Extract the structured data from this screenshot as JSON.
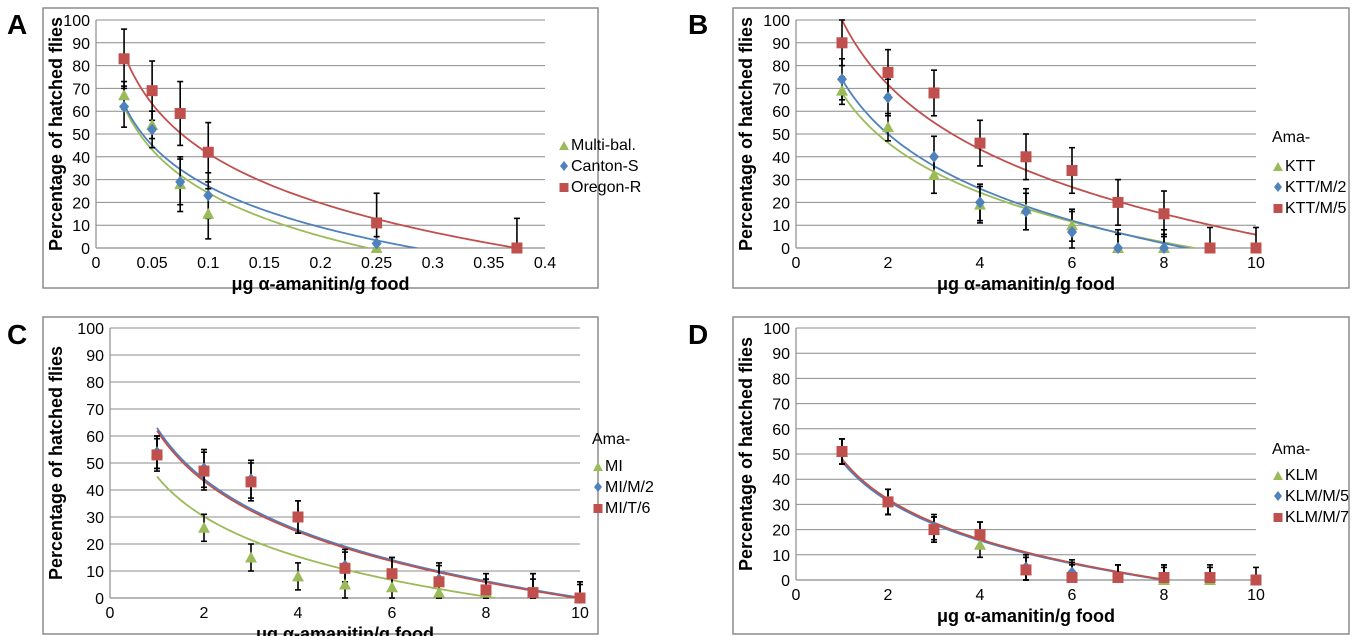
{
  "chart_data": [
    {
      "panel": "A",
      "type": "scatter",
      "ylabel": "Percentage of hatched flies",
      "xlabel": "μg α-amanitin/g food",
      "xlim": [
        0,
        0.4
      ],
      "ylim": [
        0,
        100
      ],
      "xticks": [
        "0",
        "0.05",
        "0.1",
        "0.15",
        "0.2",
        "0.25",
        "0.3",
        "0.35",
        "0.4"
      ],
      "yticks": [
        "0",
        "10",
        "20",
        "30",
        "40",
        "50",
        "60",
        "70",
        "80",
        "90",
        "100"
      ],
      "grid": true,
      "legend_title": "",
      "legend_position": "right",
      "series": [
        {
          "name": "Multi-bal.",
          "marker": "triangle",
          "color": "#9BBB59",
          "x": [
            0.025,
            0.05,
            0.075,
            0.1,
            0.25
          ],
          "y": [
            67,
            54,
            28,
            15,
            0
          ],
          "err": [
            6,
            6,
            12,
            11,
            0
          ],
          "fit": {
            "type": "log",
            "a": 62,
            "x0": 0.025,
            "b": -27.3
          }
        },
        {
          "name": "Canton-S",
          "marker": "diamond",
          "color": "#4F81BD",
          "x": [
            0.025,
            0.05,
            0.075,
            0.1,
            0.25
          ],
          "y": [
            62,
            52,
            29,
            23,
            2
          ],
          "err": [
            9,
            8,
            10,
            10,
            3
          ],
          "fit": {
            "type": "log",
            "a": 63,
            "x0": 0.025,
            "b": -25.9
          }
        },
        {
          "name": "Oregon-R",
          "marker": "square",
          "color": "#C0504D",
          "x": [
            0.025,
            0.05,
            0.075,
            0.1,
            0.25,
            0.375
          ],
          "y": [
            83,
            69,
            59,
            42,
            11,
            0
          ],
          "err": [
            13,
            13,
            14,
            13,
            13,
            13
          ],
          "fit": {
            "type": "log",
            "a": 85,
            "x0": 0.025,
            "b": -31.4
          }
        }
      ]
    },
    {
      "panel": "B",
      "type": "scatter",
      "ylabel": "Percentage of hatched flies",
      "xlabel": "μg α-amanitin/g food",
      "xlim": [
        0,
        10
      ],
      "ylim": [
        0,
        100
      ],
      "xticks": [
        "0",
        "2",
        "4",
        "6",
        "8",
        "10"
      ],
      "yticks": [
        "0",
        "10",
        "20",
        "30",
        "40",
        "50",
        "60",
        "70",
        "80",
        "90",
        "100"
      ],
      "grid": true,
      "legend_title": "Ama-",
      "legend_position": "right",
      "series": [
        {
          "name": "KTT",
          "marker": "triangle",
          "color": "#9BBB59",
          "x": [
            1,
            2,
            3,
            4,
            5,
            6,
            7,
            8
          ],
          "y": [
            69,
            53,
            32,
            19,
            17,
            10,
            0,
            0
          ],
          "err": [
            6,
            6,
            8,
            8,
            9,
            7,
            6,
            6
          ],
          "fit": {
            "type": "log",
            "a": 68,
            "x0": 1,
            "b": -31.5
          }
        },
        {
          "name": "KTT/M/2",
          "marker": "diamond",
          "color": "#4F81BD",
          "x": [
            1,
            2,
            3,
            4,
            5,
            6,
            7,
            8
          ],
          "y": [
            74,
            66,
            40,
            20,
            16,
            7,
            0,
            0
          ],
          "err": [
            9,
            8,
            9,
            8,
            8,
            9,
            8,
            8
          ],
          "fit": {
            "type": "log",
            "a": 74,
            "x0": 1,
            "b": -34.6
          }
        },
        {
          "name": "KTT/M/5",
          "marker": "square",
          "color": "#C0504D",
          "x": [
            1,
            2,
            3,
            4,
            5,
            6,
            7,
            8,
            9,
            10
          ],
          "y": [
            90,
            77,
            68,
            46,
            40,
            34,
            20,
            15,
            0,
            0
          ],
          "err": [
            10,
            10,
            10,
            10,
            10,
            10,
            10,
            10,
            9,
            9
          ],
          "fit": {
            "type": "log",
            "a": 100,
            "x0": 1,
            "b": -40.9
          }
        }
      ]
    },
    {
      "panel": "C",
      "type": "scatter",
      "ylabel": "Percentage of hatched flies",
      "xlabel": "μg α-amanitin/g food",
      "xlim": [
        0,
        10
      ],
      "ylim": [
        0,
        100
      ],
      "xticks": [
        "0",
        "2",
        "4",
        "6",
        "8",
        "10"
      ],
      "yticks": [
        "0",
        "10",
        "20",
        "30",
        "40",
        "50",
        "60",
        "70",
        "80",
        "90",
        "100"
      ],
      "grid": true,
      "legend_title": "Ama-",
      "legend_position": "right",
      "series": [
        {
          "name": "MI",
          "marker": "triangle",
          "color": "#9BBB59",
          "x": [
            1,
            2,
            3,
            4,
            5,
            6,
            7,
            8,
            9,
            10
          ],
          "y": [
            54,
            26,
            15,
            8,
            5,
            4,
            2,
            2,
            2,
            0
          ],
          "err": [
            6,
            5,
            5,
            5,
            5,
            5,
            5,
            5,
            5,
            5
          ],
          "fit": {
            "type": "log",
            "a": 45,
            "x0": 1,
            "b": -21.4
          }
        },
        {
          "name": "MI/M/2",
          "marker": "diamond",
          "color": "#4F81BD",
          "x": [
            1,
            2,
            3,
            4,
            5,
            6,
            7,
            8,
            9,
            10
          ],
          "y": [
            54,
            48,
            44,
            30,
            12,
            9,
            7,
            3,
            2,
            0
          ],
          "err": [
            6,
            7,
            7,
            6,
            6,
            6,
            6,
            6,
            7,
            6
          ],
          "fit": {
            "type": "log",
            "a": 63,
            "x0": 1,
            "b": -27.3
          }
        },
        {
          "name": "MI/T/6",
          "marker": "square",
          "color": "#C0504D",
          "x": [
            1,
            2,
            3,
            4,
            5,
            6,
            7,
            8,
            9,
            10
          ],
          "y": [
            53,
            47,
            43,
            30,
            11,
            9,
            6,
            3,
            2,
            0
          ],
          "err": [
            6,
            7,
            7,
            6,
            6,
            6,
            6,
            6,
            7,
            6
          ],
          "fit": {
            "type": "log",
            "a": 62,
            "x0": 1,
            "b": -27.0
          }
        }
      ]
    },
    {
      "panel": "D",
      "type": "scatter",
      "ylabel": "Percentage of hatched flies",
      "xlabel": "μg α-amanitin/g food",
      "xlim": [
        0,
        10
      ],
      "ylim": [
        0,
        100
      ],
      "xticks": [
        "0",
        "2",
        "4",
        "6",
        "8",
        "10"
      ],
      "yticks": [
        "0",
        "10",
        "20",
        "30",
        "40",
        "50",
        "60",
        "70",
        "80",
        "90",
        "100"
      ],
      "grid": true,
      "legend_title": "Ama-",
      "legend_position": "right",
      "series": [
        {
          "name": "KLM",
          "marker": "triangle",
          "color": "#9BBB59",
          "x": [
            1,
            2,
            3,
            4,
            5,
            6,
            7,
            8,
            9
          ],
          "y": [
            51,
            31,
            20,
            14,
            4,
            2,
            1,
            0,
            0
          ],
          "err": [
            5,
            5,
            5,
            5,
            5,
            5,
            5,
            5,
            5
          ],
          "fit": {
            "type": "log",
            "a": 48,
            "x0": 1,
            "b": -23.0
          }
        },
        {
          "name": "KLM/M/5",
          "marker": "diamond",
          "color": "#4F81BD",
          "x": [
            1,
            2,
            3,
            4,
            5,
            6,
            7,
            8
          ],
          "y": [
            51,
            31,
            21,
            18,
            5,
            3,
            1,
            1
          ],
          "err": [
            5,
            5,
            5,
            5,
            5,
            5,
            5,
            5
          ],
          "fit": {
            "type": "log",
            "a": 47,
            "x0": 1,
            "b": -22.6
          }
        },
        {
          "name": "KLM/M/7",
          "marker": "square",
          "color": "#C0504D",
          "x": [
            1,
            2,
            3,
            4,
            5,
            6,
            7,
            8,
            9,
            10
          ],
          "y": [
            51,
            31,
            20,
            18,
            4,
            1,
            1,
            1,
            1,
            0
          ],
          "err": [
            5,
            5,
            5,
            5,
            5,
            5,
            5,
            5,
            5,
            5
          ],
          "fit": {
            "type": "log",
            "a": 48,
            "x0": 1,
            "b": -23.0
          }
        }
      ]
    }
  ]
}
